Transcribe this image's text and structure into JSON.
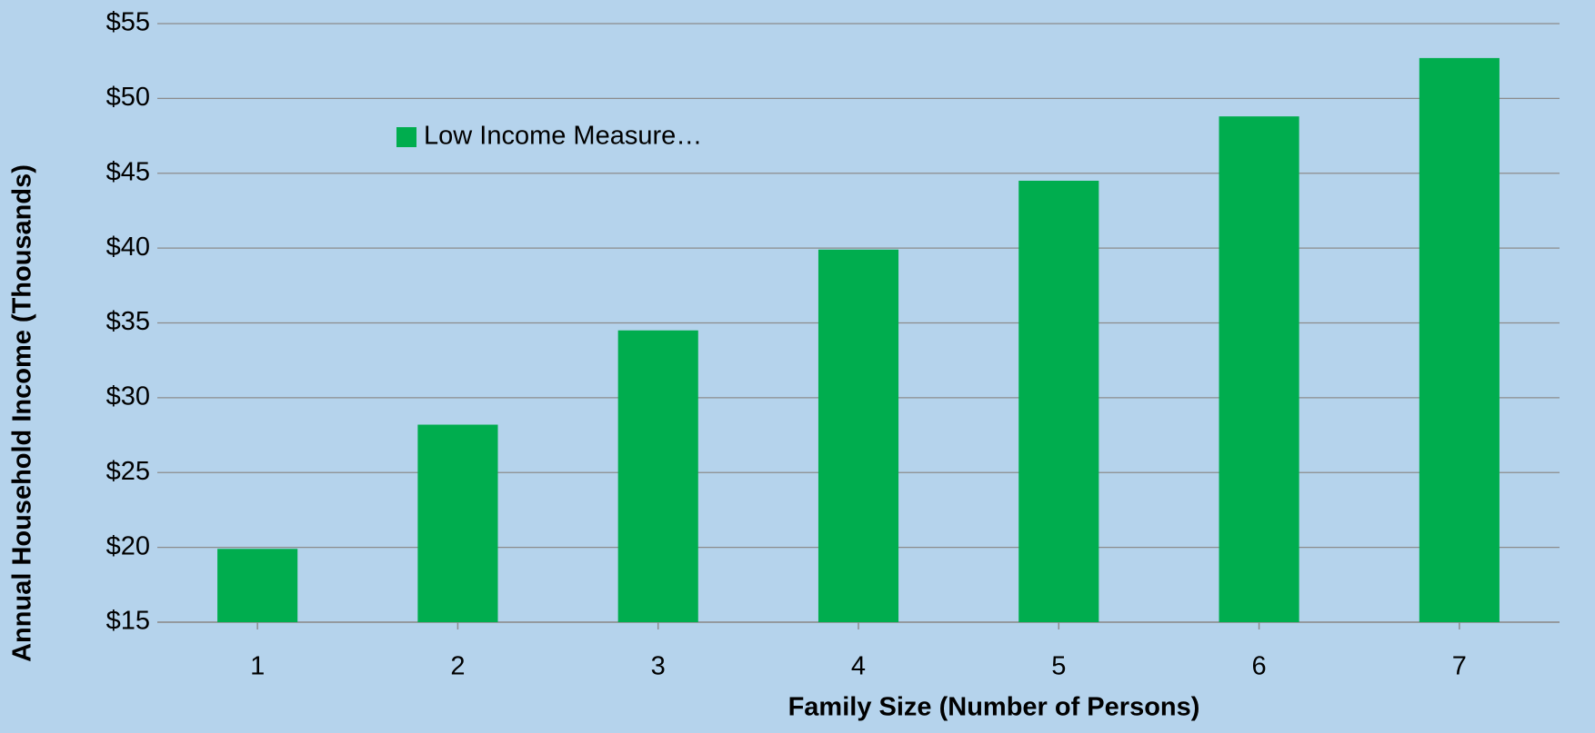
{
  "chart_data": {
    "type": "bar",
    "x_label": "Family Size (Number of Persons)",
    "y_label": "Annual Household Income (Thousands)",
    "categories": [
      "1",
      "2",
      "3",
      "4",
      "5",
      "6",
      "7"
    ],
    "series": [
      {
        "name": "Low Income Measure…",
        "color": "#00ad4e",
        "values": [
          19.9,
          28.2,
          34.5,
          39.9,
          44.5,
          48.8,
          52.7
        ]
      }
    ],
    "ylim": [
      15,
      55
    ],
    "yticks": [
      {
        "value": 15,
        "label": "$15"
      },
      {
        "value": 20,
        "label": "$20"
      },
      {
        "value": 25,
        "label": "$25"
      },
      {
        "value": 30,
        "label": "$30"
      },
      {
        "value": 35,
        "label": "$35"
      },
      {
        "value": 40,
        "label": "$40"
      },
      {
        "value": 45,
        "label": "$45"
      },
      {
        "value": 50,
        "label": "$50"
      },
      {
        "value": 55,
        "label": "$55"
      }
    ],
    "grid": true,
    "legend": "top-left"
  }
}
